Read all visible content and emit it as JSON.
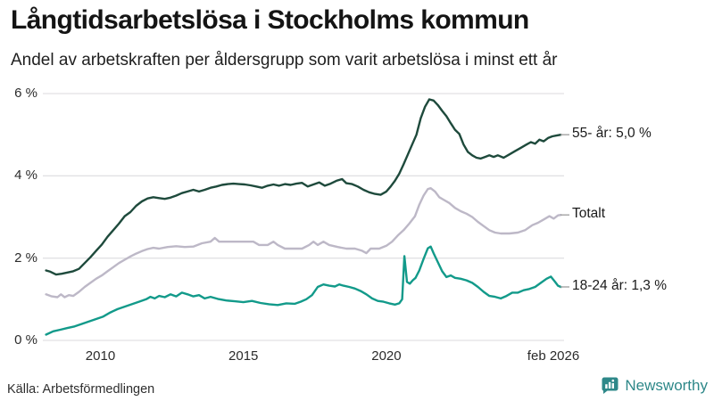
{
  "header": {
    "title": "Långtidsarbetslösa i Stockholms kommun",
    "subtitle": "Andel av arbetskraften per åldersgrupp som varit arbetslösa i minst ett år"
  },
  "footer": {
    "source": "Källa: Arbetsförmedlingen",
    "brand": "Newsworthy",
    "brand_icon": "newsworthy-bar-chart-bubble-icon",
    "brand_color": "#2e8889"
  },
  "colors": {
    "grid": "#e2e1e4",
    "tick_text": "#2b2b2b",
    "end_label_dash": "#a3a3a3",
    "series_55": "#1e4a3c",
    "series_total": "#bdb8c7",
    "series_18_24": "#129a8a"
  },
  "chart_data": {
    "type": "line",
    "title": "Långtidsarbetslösa i Stockholms kommun",
    "subtitle": "Andel av arbetskraften per åldersgrupp som varit arbetslösa i minst ett år",
    "unit": "%",
    "grid": true,
    "x_axis": {
      "range": [
        2008.05,
        2026.15
      ],
      "ticks": [
        {
          "label": "2010",
          "value": 2010.0
        },
        {
          "label": "2015",
          "value": 2015.0
        },
        {
          "label": "2020",
          "value": 2020.0
        },
        {
          "label": "feb 2026",
          "value": 2026.0
        }
      ]
    },
    "y_axis": {
      "range": [
        0,
        6
      ],
      "ticks": [
        {
          "label": "0 %",
          "value": 0
        },
        {
          "label": "2 %",
          "value": 2
        },
        {
          "label": "4 %",
          "value": 4
        },
        {
          "label": "6 %",
          "value": 6
        }
      ]
    },
    "legend_position": "right-end-labels",
    "series": [
      {
        "name": "Totalt",
        "end_label": "Totalt",
        "color": "#bdb8c7",
        "points": [
          [
            2008.1,
            1.12
          ],
          [
            2008.3,
            1.07
          ],
          [
            2008.5,
            1.05
          ],
          [
            2008.62,
            1.12
          ],
          [
            2008.75,
            1.05
          ],
          [
            2008.9,
            1.1
          ],
          [
            2009.05,
            1.08
          ],
          [
            2009.25,
            1.18
          ],
          [
            2009.45,
            1.3
          ],
          [
            2009.65,
            1.4
          ],
          [
            2009.85,
            1.5
          ],
          [
            2010.05,
            1.58
          ],
          [
            2010.25,
            1.68
          ],
          [
            2010.45,
            1.78
          ],
          [
            2010.65,
            1.88
          ],
          [
            2010.85,
            1.96
          ],
          [
            2011.05,
            2.04
          ],
          [
            2011.25,
            2.11
          ],
          [
            2011.45,
            2.17
          ],
          [
            2011.65,
            2.22
          ],
          [
            2011.85,
            2.25
          ],
          [
            2012.05,
            2.23
          ],
          [
            2012.35,
            2.27
          ],
          [
            2012.65,
            2.29
          ],
          [
            2012.95,
            2.27
          ],
          [
            2013.25,
            2.28
          ],
          [
            2013.55,
            2.36
          ],
          [
            2013.85,
            2.4
          ],
          [
            2014.0,
            2.49
          ],
          [
            2014.15,
            2.4
          ],
          [
            2014.45,
            2.4
          ],
          [
            2014.75,
            2.4
          ],
          [
            2015.05,
            2.4
          ],
          [
            2015.35,
            2.4
          ],
          [
            2015.55,
            2.32
          ],
          [
            2015.85,
            2.32
          ],
          [
            2016.05,
            2.4
          ],
          [
            2016.2,
            2.32
          ],
          [
            2016.45,
            2.23
          ],
          [
            2016.75,
            2.23
          ],
          [
            2017.05,
            2.23
          ],
          [
            2017.3,
            2.32
          ],
          [
            2017.45,
            2.4
          ],
          [
            2017.6,
            2.32
          ],
          [
            2017.8,
            2.4
          ],
          [
            2018.0,
            2.32
          ],
          [
            2018.3,
            2.27
          ],
          [
            2018.6,
            2.23
          ],
          [
            2018.9,
            2.23
          ],
          [
            2019.15,
            2.18
          ],
          [
            2019.3,
            2.12
          ],
          [
            2019.45,
            2.23
          ],
          [
            2019.75,
            2.23
          ],
          [
            2020.0,
            2.3
          ],
          [
            2020.2,
            2.4
          ],
          [
            2020.4,
            2.55
          ],
          [
            2020.6,
            2.68
          ],
          [
            2020.8,
            2.84
          ],
          [
            2021.0,
            3.02
          ],
          [
            2021.15,
            3.3
          ],
          [
            2021.3,
            3.52
          ],
          [
            2021.45,
            3.68
          ],
          [
            2021.55,
            3.7
          ],
          [
            2021.7,
            3.62
          ],
          [
            2021.85,
            3.48
          ],
          [
            2022.0,
            3.42
          ],
          [
            2022.2,
            3.34
          ],
          [
            2022.4,
            3.22
          ],
          [
            2022.6,
            3.14
          ],
          [
            2022.8,
            3.08
          ],
          [
            2023.0,
            3.0
          ],
          [
            2023.2,
            2.88
          ],
          [
            2023.4,
            2.78
          ],
          [
            2023.6,
            2.68
          ],
          [
            2023.8,
            2.62
          ],
          [
            2024.0,
            2.6
          ],
          [
            2024.3,
            2.6
          ],
          [
            2024.6,
            2.62
          ],
          [
            2024.85,
            2.68
          ],
          [
            2025.1,
            2.8
          ],
          [
            2025.3,
            2.86
          ],
          [
            2025.5,
            2.94
          ],
          [
            2025.7,
            3.02
          ],
          [
            2025.85,
            2.96
          ],
          [
            2026.0,
            3.04
          ],
          [
            2026.1,
            3.05
          ]
        ]
      },
      {
        "name": "18-24 år",
        "end_label": "18-24 år: 1,3 %",
        "color": "#129a8a",
        "points": [
          [
            2008.1,
            0.14
          ],
          [
            2008.35,
            0.22
          ],
          [
            2008.6,
            0.26
          ],
          [
            2008.85,
            0.3
          ],
          [
            2009.1,
            0.34
          ],
          [
            2009.35,
            0.4
          ],
          [
            2009.6,
            0.46
          ],
          [
            2009.85,
            0.52
          ],
          [
            2010.1,
            0.58
          ],
          [
            2010.35,
            0.68
          ],
          [
            2010.6,
            0.76
          ],
          [
            2010.85,
            0.82
          ],
          [
            2011.1,
            0.88
          ],
          [
            2011.35,
            0.94
          ],
          [
            2011.6,
            1.0
          ],
          [
            2011.75,
            1.06
          ],
          [
            2011.9,
            1.02
          ],
          [
            2012.05,
            1.08
          ],
          [
            2012.25,
            1.05
          ],
          [
            2012.45,
            1.12
          ],
          [
            2012.65,
            1.07
          ],
          [
            2012.85,
            1.16
          ],
          [
            2013.05,
            1.12
          ],
          [
            2013.25,
            1.07
          ],
          [
            2013.45,
            1.1
          ],
          [
            2013.65,
            1.02
          ],
          [
            2013.85,
            1.06
          ],
          [
            2014.1,
            1.01
          ],
          [
            2014.4,
            0.97
          ],
          [
            2014.7,
            0.95
          ],
          [
            2015.0,
            0.93
          ],
          [
            2015.3,
            0.96
          ],
          [
            2015.6,
            0.91
          ],
          [
            2015.9,
            0.88
          ],
          [
            2016.2,
            0.86
          ],
          [
            2016.5,
            0.9
          ],
          [
            2016.8,
            0.89
          ],
          [
            2017.0,
            0.94
          ],
          [
            2017.2,
            1.0
          ],
          [
            2017.4,
            1.1
          ],
          [
            2017.6,
            1.3
          ],
          [
            2017.8,
            1.36
          ],
          [
            2018.0,
            1.33
          ],
          [
            2018.2,
            1.31
          ],
          [
            2018.35,
            1.36
          ],
          [
            2018.5,
            1.33
          ],
          [
            2018.7,
            1.3
          ],
          [
            2018.9,
            1.26
          ],
          [
            2019.1,
            1.2
          ],
          [
            2019.3,
            1.12
          ],
          [
            2019.5,
            1.02
          ],
          [
            2019.7,
            0.96
          ],
          [
            2019.9,
            0.94
          ],
          [
            2020.1,
            0.9
          ],
          [
            2020.3,
            0.87
          ],
          [
            2020.45,
            0.9
          ],
          [
            2020.55,
            1.0
          ],
          [
            2020.63,
            2.05
          ],
          [
            2020.72,
            1.42
          ],
          [
            2020.82,
            1.38
          ],
          [
            2020.92,
            1.46
          ],
          [
            2021.02,
            1.52
          ],
          [
            2021.15,
            1.7
          ],
          [
            2021.3,
            1.98
          ],
          [
            2021.45,
            2.24
          ],
          [
            2021.55,
            2.28
          ],
          [
            2021.65,
            2.12
          ],
          [
            2021.8,
            1.9
          ],
          [
            2021.95,
            1.68
          ],
          [
            2022.1,
            1.54
          ],
          [
            2022.25,
            1.58
          ],
          [
            2022.4,
            1.52
          ],
          [
            2022.6,
            1.5
          ],
          [
            2022.8,
            1.46
          ],
          [
            2023.0,
            1.4
          ],
          [
            2023.2,
            1.3
          ],
          [
            2023.4,
            1.18
          ],
          [
            2023.6,
            1.08
          ],
          [
            2023.8,
            1.06
          ],
          [
            2024.0,
            1.02
          ],
          [
            2024.2,
            1.08
          ],
          [
            2024.4,
            1.16
          ],
          [
            2024.6,
            1.16
          ],
          [
            2024.8,
            1.22
          ],
          [
            2025.0,
            1.25
          ],
          [
            2025.2,
            1.3
          ],
          [
            2025.4,
            1.4
          ],
          [
            2025.6,
            1.5
          ],
          [
            2025.75,
            1.55
          ],
          [
            2025.9,
            1.42
          ],
          [
            2026.0,
            1.33
          ],
          [
            2026.1,
            1.3
          ]
        ]
      },
      {
        "name": "55- år",
        "end_label": "55- år: 5,0 %",
        "color": "#1e4a3c",
        "points": [
          [
            2008.1,
            1.7
          ],
          [
            2008.25,
            1.67
          ],
          [
            2008.45,
            1.6
          ],
          [
            2008.65,
            1.62
          ],
          [
            2008.85,
            1.65
          ],
          [
            2009.05,
            1.68
          ],
          [
            2009.25,
            1.74
          ],
          [
            2009.45,
            1.88
          ],
          [
            2009.65,
            2.02
          ],
          [
            2009.85,
            2.18
          ],
          [
            2010.05,
            2.33
          ],
          [
            2010.25,
            2.52
          ],
          [
            2010.45,
            2.68
          ],
          [
            2010.65,
            2.84
          ],
          [
            2010.85,
            3.02
          ],
          [
            2011.05,
            3.12
          ],
          [
            2011.25,
            3.27
          ],
          [
            2011.45,
            3.38
          ],
          [
            2011.65,
            3.45
          ],
          [
            2011.85,
            3.48
          ],
          [
            2012.05,
            3.46
          ],
          [
            2012.25,
            3.44
          ],
          [
            2012.45,
            3.47
          ],
          [
            2012.65,
            3.52
          ],
          [
            2012.85,
            3.58
          ],
          [
            2013.05,
            3.62
          ],
          [
            2013.25,
            3.66
          ],
          [
            2013.45,
            3.62
          ],
          [
            2013.65,
            3.66
          ],
          [
            2013.85,
            3.71
          ],
          [
            2014.05,
            3.74
          ],
          [
            2014.25,
            3.78
          ],
          [
            2014.45,
            3.8
          ],
          [
            2014.65,
            3.81
          ],
          [
            2014.85,
            3.8
          ],
          [
            2015.05,
            3.79
          ],
          [
            2015.25,
            3.77
          ],
          [
            2015.45,
            3.74
          ],
          [
            2015.65,
            3.71
          ],
          [
            2015.85,
            3.76
          ],
          [
            2016.05,
            3.79
          ],
          [
            2016.25,
            3.76
          ],
          [
            2016.45,
            3.8
          ],
          [
            2016.65,
            3.78
          ],
          [
            2016.85,
            3.81
          ],
          [
            2017.05,
            3.83
          ],
          [
            2017.25,
            3.74
          ],
          [
            2017.45,
            3.79
          ],
          [
            2017.65,
            3.84
          ],
          [
            2017.85,
            3.76
          ],
          [
            2018.05,
            3.81
          ],
          [
            2018.25,
            3.88
          ],
          [
            2018.45,
            3.92
          ],
          [
            2018.6,
            3.82
          ],
          [
            2018.8,
            3.8
          ],
          [
            2019.0,
            3.74
          ],
          [
            2019.2,
            3.66
          ],
          [
            2019.4,
            3.6
          ],
          [
            2019.6,
            3.56
          ],
          [
            2019.8,
            3.54
          ],
          [
            2020.0,
            3.62
          ],
          [
            2020.15,
            3.74
          ],
          [
            2020.3,
            3.88
          ],
          [
            2020.45,
            4.05
          ],
          [
            2020.6,
            4.28
          ],
          [
            2020.75,
            4.52
          ],
          [
            2020.9,
            4.76
          ],
          [
            2021.05,
            5.0
          ],
          [
            2021.2,
            5.4
          ],
          [
            2021.35,
            5.68
          ],
          [
            2021.5,
            5.86
          ],
          [
            2021.65,
            5.83
          ],
          [
            2021.8,
            5.72
          ],
          [
            2021.95,
            5.58
          ],
          [
            2022.1,
            5.45
          ],
          [
            2022.25,
            5.28
          ],
          [
            2022.4,
            5.12
          ],
          [
            2022.55,
            5.02
          ],
          [
            2022.7,
            4.76
          ],
          [
            2022.85,
            4.58
          ],
          [
            2023.0,
            4.5
          ],
          [
            2023.15,
            4.44
          ],
          [
            2023.3,
            4.42
          ],
          [
            2023.45,
            4.46
          ],
          [
            2023.6,
            4.5
          ],
          [
            2023.75,
            4.46
          ],
          [
            2023.9,
            4.5
          ],
          [
            2024.1,
            4.44
          ],
          [
            2024.3,
            4.52
          ],
          [
            2024.5,
            4.6
          ],
          [
            2024.7,
            4.68
          ],
          [
            2024.9,
            4.76
          ],
          [
            2025.05,
            4.82
          ],
          [
            2025.2,
            4.78
          ],
          [
            2025.35,
            4.88
          ],
          [
            2025.5,
            4.84
          ],
          [
            2025.65,
            4.92
          ],
          [
            2025.8,
            4.96
          ],
          [
            2025.95,
            4.98
          ],
          [
            2026.1,
            5.0
          ]
        ]
      }
    ]
  }
}
